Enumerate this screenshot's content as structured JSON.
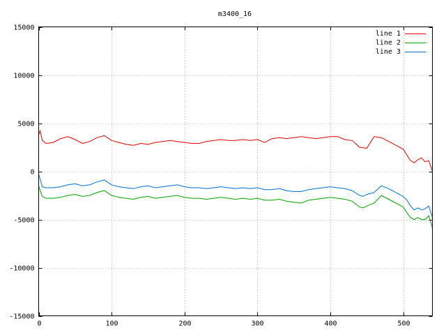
{
  "chart_data": {
    "type": "line",
    "title": "m3400_16",
    "xlabel": "",
    "ylabel": "",
    "xlim": [
      0,
      540
    ],
    "ylim": [
      -15000,
      15000
    ],
    "xticks": [
      0,
      100,
      200,
      300,
      400,
      500
    ],
    "yticks": [
      -15000,
      -10000,
      -5000,
      0,
      5000,
      10000,
      15000
    ],
    "xtick_labels": [
      "0",
      "100",
      "200",
      "300",
      "400",
      "500"
    ],
    "ytick_labels": [
      "-15000",
      "-10000",
      "-5000",
      "0",
      "5000",
      "10000",
      "15000"
    ],
    "grid": true,
    "legend_position": "top-right",
    "series": [
      {
        "name": "line 1",
        "color": "#e00000",
        "x": [
          0,
          2,
          5,
          10,
          20,
          30,
          40,
          50,
          60,
          70,
          80,
          90,
          100,
          110,
          120,
          130,
          140,
          150,
          160,
          170,
          180,
          190,
          200,
          210,
          220,
          230,
          240,
          250,
          260,
          270,
          280,
          290,
          300,
          310,
          320,
          330,
          340,
          350,
          360,
          370,
          380,
          390,
          400,
          410,
          420,
          430,
          440,
          450,
          460,
          470,
          480,
          490,
          500,
          505,
          510,
          515,
          520,
          525,
          530,
          535,
          540
        ],
        "y": [
          3800,
          4200,
          3200,
          2900,
          3000,
          3400,
          3600,
          3300,
          2900,
          3100,
          3500,
          3700,
          3200,
          3000,
          2800,
          2700,
          2900,
          2800,
          3000,
          3100,
          3200,
          3100,
          3000,
          2900,
          2900,
          3100,
          3200,
          3300,
          3200,
          3200,
          3300,
          3200,
          3300,
          3000,
          3400,
          3500,
          3400,
          3500,
          3600,
          3500,
          3400,
          3500,
          3600,
          3600,
          3300,
          3200,
          2500,
          2400,
          3600,
          3500,
          3100,
          2700,
          2300,
          1700,
          1100,
          900,
          1200,
          1400,
          1000,
          1100,
          0
        ]
      },
      {
        "name": "line 2",
        "color": "#00a000",
        "x": [
          0,
          2,
          5,
          10,
          20,
          30,
          40,
          50,
          60,
          70,
          80,
          90,
          100,
          110,
          120,
          130,
          140,
          150,
          160,
          170,
          180,
          190,
          200,
          210,
          220,
          230,
          240,
          250,
          260,
          270,
          280,
          290,
          300,
          310,
          320,
          330,
          340,
          350,
          360,
          370,
          380,
          390,
          400,
          410,
          420,
          430,
          440,
          445,
          450,
          460,
          470,
          480,
          490,
          500,
          505,
          510,
          515,
          520,
          525,
          530,
          535,
          540
        ],
        "y": [
          -1500,
          -2000,
          -2600,
          -2800,
          -2800,
          -2700,
          -2500,
          -2400,
          -2600,
          -2500,
          -2200,
          -2000,
          -2500,
          -2700,
          -2800,
          -2900,
          -2700,
          -2600,
          -2800,
          -2700,
          -2600,
          -2500,
          -2700,
          -2800,
          -2800,
          -2900,
          -2800,
          -2700,
          -2800,
          -2900,
          -2800,
          -2900,
          -2800,
          -3000,
          -3000,
          -2900,
          -3100,
          -3200,
          -3300,
          -3000,
          -2900,
          -2800,
          -2700,
          -2800,
          -2900,
          -3100,
          -3700,
          -3800,
          -3600,
          -3300,
          -2500,
          -2900,
          -3300,
          -3700,
          -4300,
          -4800,
          -5000,
          -4800,
          -5000,
          -5000,
          -4600,
          -5900
        ]
      },
      {
        "name": "line 3",
        "color": "#0070d0",
        "x": [
          0,
          2,
          5,
          10,
          20,
          30,
          40,
          50,
          60,
          70,
          80,
          90,
          100,
          110,
          120,
          130,
          140,
          150,
          160,
          170,
          180,
          190,
          200,
          210,
          220,
          230,
          240,
          250,
          260,
          270,
          280,
          290,
          300,
          310,
          320,
          330,
          340,
          350,
          360,
          370,
          380,
          390,
          400,
          410,
          420,
          430,
          440,
          445,
          450,
          460,
          470,
          480,
          490,
          500,
          505,
          510,
          515,
          520,
          525,
          530,
          535,
          540
        ],
        "y": [
          -300,
          -800,
          -1600,
          -1700,
          -1700,
          -1600,
          -1400,
          -1300,
          -1500,
          -1400,
          -1100,
          -900,
          -1400,
          -1600,
          -1700,
          -1800,
          -1600,
          -1500,
          -1700,
          -1600,
          -1500,
          -1400,
          -1600,
          -1700,
          -1700,
          -1800,
          -1700,
          -1600,
          -1700,
          -1800,
          -1700,
          -1800,
          -1700,
          -1900,
          -1900,
          -1800,
          -2000,
          -2100,
          -2100,
          -1900,
          -1800,
          -1700,
          -1600,
          -1700,
          -1800,
          -2000,
          -2500,
          -2600,
          -2400,
          -2200,
          -1500,
          -1800,
          -2200,
          -2600,
          -3000,
          -3600,
          -4000,
          -3800,
          -4000,
          -3900,
          -3600,
          -4800
        ]
      }
    ]
  }
}
